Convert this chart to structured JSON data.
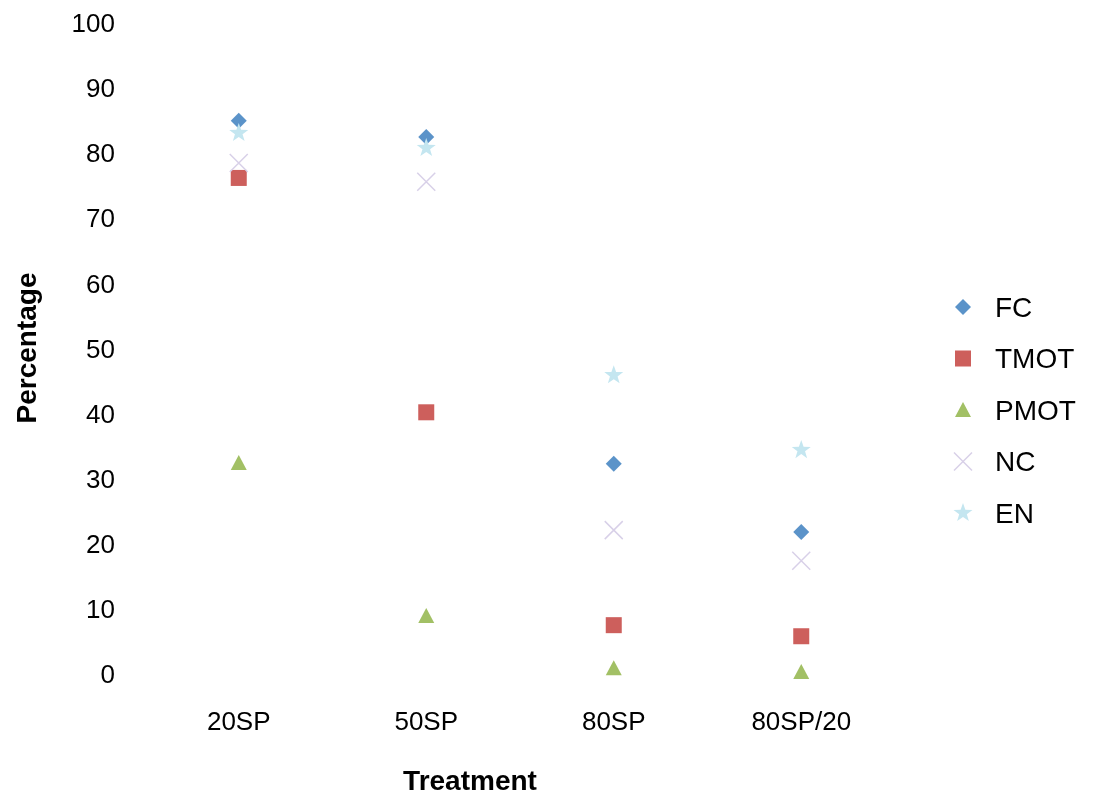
{
  "chart_data": {
    "type": "scatter",
    "xlabel": "Treatment",
    "ylabel": "Percentage",
    "categories": [
      "20SP",
      "50SP",
      "80SP",
      "80SP/20"
    ],
    "ylim": [
      0,
      100
    ],
    "yticks": [
      0,
      10,
      20,
      30,
      40,
      50,
      60,
      70,
      80,
      90,
      100
    ],
    "grid": false,
    "legend": "right",
    "series": [
      {
        "name": "FC",
        "color": "#5b93c9",
        "marker": "diamond",
        "values": [
          85.0,
          82.5,
          32.3,
          21.8
        ]
      },
      {
        "name": "TMOT",
        "color": "#cd5f5c",
        "marker": "square",
        "values": [
          76.2,
          40.2,
          7.5,
          5.8
        ]
      },
      {
        "name": "PMOT",
        "color": "#a2c065",
        "marker": "triangle",
        "values": [
          32.4,
          8.9,
          0.9,
          0.3
        ]
      },
      {
        "name": "NC",
        "color": "#d8d0e8",
        "marker": "cross",
        "values": [
          78.5,
          75.6,
          22.1,
          17.4
        ]
      },
      {
        "name": "EN",
        "color": "#c4e6f0",
        "marker": "star",
        "values": [
          83.1,
          80.8,
          45.9,
          34.4
        ]
      }
    ]
  }
}
